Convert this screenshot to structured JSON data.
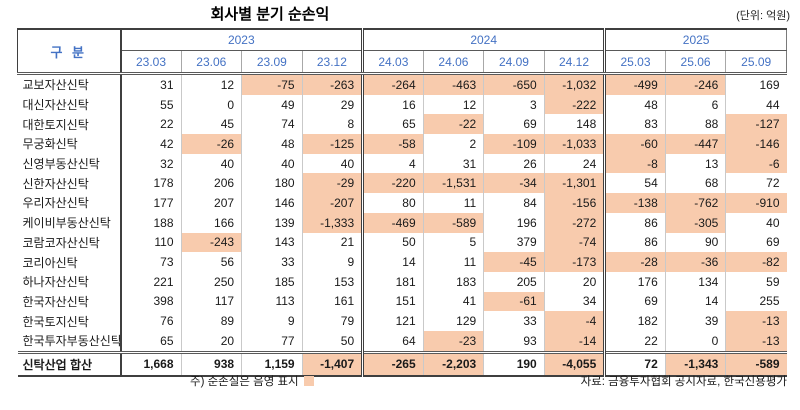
{
  "title": "회사별 분기 순손익",
  "unit_note": "(단위: 억원)",
  "table": {
    "category_header": "구 분",
    "year_groups": [
      {
        "label": "2023",
        "quarters": [
          "23.03",
          "23.06",
          "23.09",
          "23.12"
        ]
      },
      {
        "label": "2024",
        "quarters": [
          "24.03",
          "24.06",
          "24.09",
          "24.12"
        ]
      },
      {
        "label": "2025",
        "quarters": [
          "25.03",
          "25.06",
          "25.09"
        ]
      }
    ],
    "rows": [
      {
        "name": "교보자산신탁",
        "values": [
          "31",
          "12",
          "-75",
          "-263",
          "-264",
          "-463",
          "-650",
          "-1,032",
          "-499",
          "-246",
          "169"
        ]
      },
      {
        "name": "대신자산신탁",
        "values": [
          "55",
          "0",
          "49",
          "29",
          "16",
          "12",
          "3",
          "-222",
          "48",
          "6",
          "44"
        ]
      },
      {
        "name": "대한토지신탁",
        "values": [
          "22",
          "45",
          "74",
          "8",
          "65",
          "-22",
          "69",
          "148",
          "83",
          "88",
          "-127"
        ]
      },
      {
        "name": "무궁화신탁",
        "values": [
          "42",
          "-26",
          "48",
          "-125",
          "-58",
          "2",
          "-109",
          "-1,033",
          "-60",
          "-447",
          "-146"
        ]
      },
      {
        "name": "신영부동산신탁",
        "values": [
          "32",
          "40",
          "40",
          "40",
          "4",
          "31",
          "26",
          "24",
          "-8",
          "13",
          "-6"
        ]
      },
      {
        "name": "신한자산신탁",
        "values": [
          "178",
          "206",
          "180",
          "-29",
          "-220",
          "-1,531",
          "-34",
          "-1,301",
          "54",
          "68",
          "72"
        ]
      },
      {
        "name": "우리자산신탁",
        "values": [
          "177",
          "207",
          "146",
          "-207",
          "80",
          "11",
          "84",
          "-156",
          "-138",
          "-762",
          "-910"
        ]
      },
      {
        "name": "케이비부동산신탁",
        "values": [
          "188",
          "166",
          "139",
          "-1,333",
          "-469",
          "-589",
          "196",
          "-272",
          "86",
          "-305",
          "40"
        ]
      },
      {
        "name": "코람코자산신탁",
        "values": [
          "110",
          "-243",
          "143",
          "21",
          "50",
          "5",
          "379",
          "-74",
          "86",
          "90",
          "69"
        ]
      },
      {
        "name": "코리아신탁",
        "values": [
          "73",
          "56",
          "33",
          "9",
          "14",
          "11",
          "-45",
          "-173",
          "-28",
          "-36",
          "-82"
        ]
      },
      {
        "name": "하나자산신탁",
        "values": [
          "221",
          "250",
          "185",
          "153",
          "181",
          "183",
          "205",
          "20",
          "176",
          "134",
          "59"
        ]
      },
      {
        "name": "한국자산신탁",
        "values": [
          "398",
          "117",
          "113",
          "161",
          "151",
          "41",
          "-61",
          "34",
          "69",
          "14",
          "255"
        ]
      },
      {
        "name": "한국토지신탁",
        "values": [
          "76",
          "89",
          "9",
          "79",
          "121",
          "129",
          "33",
          "-4",
          "182",
          "39",
          "-13"
        ]
      },
      {
        "name": "한국투자부동산신탁",
        "values": [
          "65",
          "20",
          "77",
          "50",
          "64",
          "-23",
          "93",
          "-14",
          "22",
          "0",
          "-13"
        ]
      }
    ],
    "total_row": {
      "name": "신탁산업 합산",
      "values": [
        "1,668",
        "938",
        "1,159",
        "-1,407",
        "-265",
        "-2,203",
        "190",
        "-4,055",
        "72",
        "-1,343",
        "-589"
      ]
    }
  },
  "footnote": {
    "note": "주) 순손실은 음영 표시",
    "source": "자료: 금융투자협회 공시자료, 한국신용평가"
  },
  "colors": {
    "negative_highlight": "#F8CBAD",
    "header_text": "#4472C4"
  }
}
